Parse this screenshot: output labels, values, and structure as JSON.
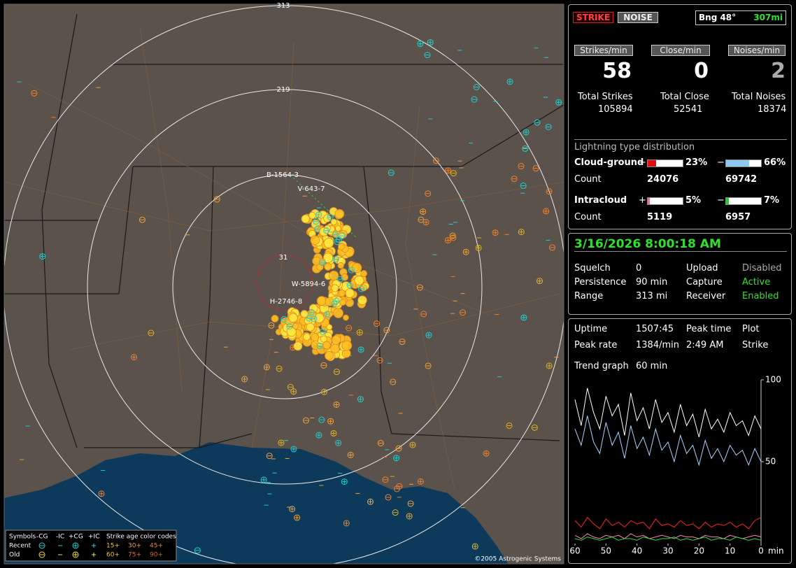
{
  "map": {
    "range_labels": [
      "313",
      "219"
    ],
    "station_labels": [
      "B-1564-3",
      "V-643-7",
      "W-5894-6",
      "H-2746-8",
      "31"
    ],
    "copyright": "©2005 Astrogenic Systems",
    "legend": {
      "header": [
        "Symbols",
        "-CG",
        "-IC",
        "+CG",
        "+IC",
        "Strike age color codes"
      ],
      "rows": [
        {
          "label": "Recent",
          "ages": [
            "15+",
            "30+",
            "45+"
          ]
        },
        {
          "label": "Old",
          "ages": [
            "60+",
            "75+",
            "90+"
          ]
        }
      ]
    }
  },
  "panel": {
    "buttons": [
      "STRIKE",
      "NOISE"
    ],
    "bearing": "Bng 48°",
    "distance": "307mi",
    "rates": [
      {
        "label": "Strikes/min",
        "value": 58
      },
      {
        "label": "Close/min",
        "value": 0
      },
      {
        "label": "Noises/min",
        "value": 2
      }
    ],
    "totals": [
      {
        "label": "Total Strikes",
        "value": 105894
      },
      {
        "label": "Total Close",
        "value": 52541
      },
      {
        "label": "Total Noises",
        "value": 18374
      }
    ],
    "distribution": {
      "title": "Lightning type distribution",
      "count_label": "Count",
      "rows": [
        {
          "label": "Cloud-ground",
          "plus": {
            "sign": "+",
            "value": 23,
            "label": "23%",
            "color": "#e01010",
            "count": 24076
          },
          "minus": {
            "sign": "−",
            "value": 66,
            "label": "66%",
            "color": "#8ec8f0",
            "count": 69742
          }
        },
        {
          "label": "Intracloud",
          "plus": {
            "sign": "+",
            "value": 5,
            "label": "5%",
            "color": "#e070b0",
            "count": 5119
          },
          "minus": {
            "sign": "−",
            "value": 7,
            "label": "7%",
            "color": "#20d020",
            "count": 6957
          }
        }
      ]
    },
    "datetime": "3/16/2026 8:00:18 AM",
    "settings": [
      [
        "Squelch",
        "0",
        "Upload",
        "Disabled"
      ],
      [
        "Persistence",
        "90 min",
        "Capture",
        "Active"
      ],
      [
        "Range",
        "313 mi",
        "Receiver",
        "Enabled"
      ]
    ],
    "stats": [
      [
        "Uptime",
        "1507:45",
        "Peak time",
        "2:49 AM",
        "Plot"
      ],
      [
        "Peak rate",
        "1384/min",
        "2:49 AM",
        "Strike"
      ]
    ],
    "trend_label": "Trend graph",
    "trend_span": "60 min"
  },
  "chart_data": {
    "type": "line",
    "x": [
      60,
      58,
      56,
      54,
      52,
      50,
      48,
      46,
      44,
      42,
      40,
      38,
      36,
      34,
      32,
      30,
      28,
      26,
      24,
      22,
      20,
      18,
      16,
      14,
      12,
      10,
      8,
      6,
      4,
      2,
      0
    ],
    "xlim": [
      60,
      0
    ],
    "xticks": [
      60,
      50,
      40,
      30,
      20,
      10,
      0
    ],
    "x_unit": "min",
    "ylim": [
      0,
      100
    ],
    "yticks": [
      100,
      50
    ],
    "series": [
      {
        "color": "#ffffff",
        "values": [
          88,
          72,
          95,
          80,
          70,
          90,
          78,
          85,
          66,
          92,
          75,
          83,
          70,
          88,
          74,
          80,
          68,
          85,
          72,
          79,
          65,
          82,
          70,
          76,
          68,
          80,
          72,
          75,
          66,
          78,
          70
        ]
      },
      {
        "color": "#a8d4ff",
        "values": [
          70,
          60,
          78,
          62,
          55,
          74,
          60,
          68,
          52,
          72,
          58,
          65,
          54,
          70,
          57,
          62,
          50,
          66,
          55,
          60,
          48,
          63,
          52,
          58,
          50,
          60,
          54,
          57,
          48,
          58,
          50
        ]
      },
      {
        "color": "#ff2020",
        "values": [
          14,
          10,
          16,
          12,
          9,
          15,
          11,
          13,
          10,
          14,
          12,
          13,
          9,
          15,
          11,
          12,
          10,
          14,
          11,
          12,
          9,
          13,
          10,
          12,
          11,
          13,
          10,
          12,
          9,
          14,
          16
        ]
      },
      {
        "color": "#ff80c0",
        "values": [
          5,
          3,
          6,
          4,
          3,
          5,
          4,
          5,
          3,
          6,
          4,
          5,
          3,
          4,
          5,
          4,
          3,
          5,
          4,
          4,
          3,
          5,
          4,
          4,
          3,
          5,
          4,
          3,
          4,
          5,
          4
        ]
      },
      {
        "color": "#30e030",
        "values": [
          3,
          2,
          4,
          3,
          2,
          3,
          4,
          2,
          3,
          3,
          2,
          4,
          3,
          2,
          3,
          3,
          4,
          2,
          3,
          2,
          3,
          4,
          2,
          3,
          3,
          2,
          4,
          3,
          2,
          3,
          2
        ]
      }
    ]
  }
}
